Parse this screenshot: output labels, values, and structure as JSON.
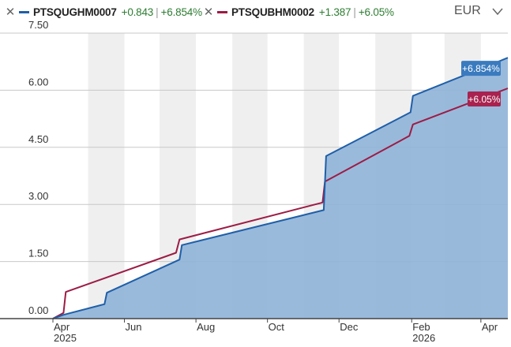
{
  "legend": {
    "series1": {
      "name": "PTSQUGHM0007",
      "change": "+0.843",
      "pct": "+6.854%",
      "color": "#1f5fa8",
      "remove_icon": "close-icon"
    },
    "series2": {
      "name": "PTSQUBHM0002",
      "change": "+1.387",
      "pct": "+6.05%",
      "color": "#9c1c45",
      "remove_icon": "close-icon"
    }
  },
  "currency": {
    "label": "EUR",
    "icon": "chevron-down-icon"
  },
  "chart_data": {
    "type": "area",
    "x_range": [
      "2025-04-01",
      "2026-04-24"
    ],
    "ylim": [
      0,
      7.5
    ],
    "yticks": [
      0,
      1.5,
      3,
      4.5,
      6,
      7.5
    ],
    "ytick_labels": [
      "0.00",
      "1.50",
      "3.00",
      "4.50",
      "6.00",
      "7.50"
    ],
    "xticks": [
      {
        "date": "2025-04-01",
        "label": "Apr",
        "sublabel": "2025"
      },
      {
        "date": "2025-06-01",
        "label": "Jun",
        "sublabel": ""
      },
      {
        "date": "2025-08-01",
        "label": "Aug",
        "sublabel": ""
      },
      {
        "date": "2025-10-01",
        "label": "Oct",
        "sublabel": ""
      },
      {
        "date": "2025-12-01",
        "label": "Dec",
        "sublabel": ""
      },
      {
        "date": "2026-02-01",
        "label": "Feb",
        "sublabel": "2026"
      },
      {
        "date": "2026-04-01",
        "label": "Apr",
        "sublabel": ""
      }
    ],
    "shaded_bands": [
      [
        "2025-05-01",
        "2025-06-01"
      ],
      [
        "2025-07-01",
        "2025-08-01"
      ],
      [
        "2025-09-01",
        "2025-10-01"
      ],
      [
        "2025-11-01",
        "2025-12-01"
      ],
      [
        "2026-01-01",
        "2026-02-01"
      ],
      [
        "2026-03-01",
        "2026-04-01"
      ]
    ],
    "grid": true,
    "series": [
      {
        "name": "PTSQUGHM0007",
        "color": "#1f5fa8",
        "fill": "#8fb3d8",
        "end_label": "+6.854%",
        "points": [
          [
            "2025-04-01",
            0.0
          ],
          [
            "2025-04-10",
            0.1
          ],
          [
            "2025-05-15",
            0.38
          ],
          [
            "2025-05-17",
            0.68
          ],
          [
            "2025-07-18",
            1.55
          ],
          [
            "2025-07-20",
            1.93
          ],
          [
            "2025-11-18",
            2.85
          ],
          [
            "2025-11-20",
            4.27
          ],
          [
            "2026-01-31",
            5.42
          ],
          [
            "2026-02-02",
            5.85
          ],
          [
            "2026-04-24",
            6.854
          ]
        ]
      },
      {
        "name": "PTSQUBHM0002",
        "color": "#9c1c45",
        "end_label": "+6.05%",
        "points": [
          [
            "2025-04-01",
            0.0
          ],
          [
            "2025-04-10",
            0.15
          ],
          [
            "2025-04-12",
            0.7
          ],
          [
            "2025-07-15",
            1.73
          ],
          [
            "2025-07-18",
            2.08
          ],
          [
            "2025-11-17",
            3.05
          ],
          [
            "2025-11-19",
            3.6
          ],
          [
            "2026-01-30",
            4.8
          ],
          [
            "2026-02-02",
            5.1
          ],
          [
            "2026-04-24",
            6.05
          ]
        ]
      }
    ]
  }
}
